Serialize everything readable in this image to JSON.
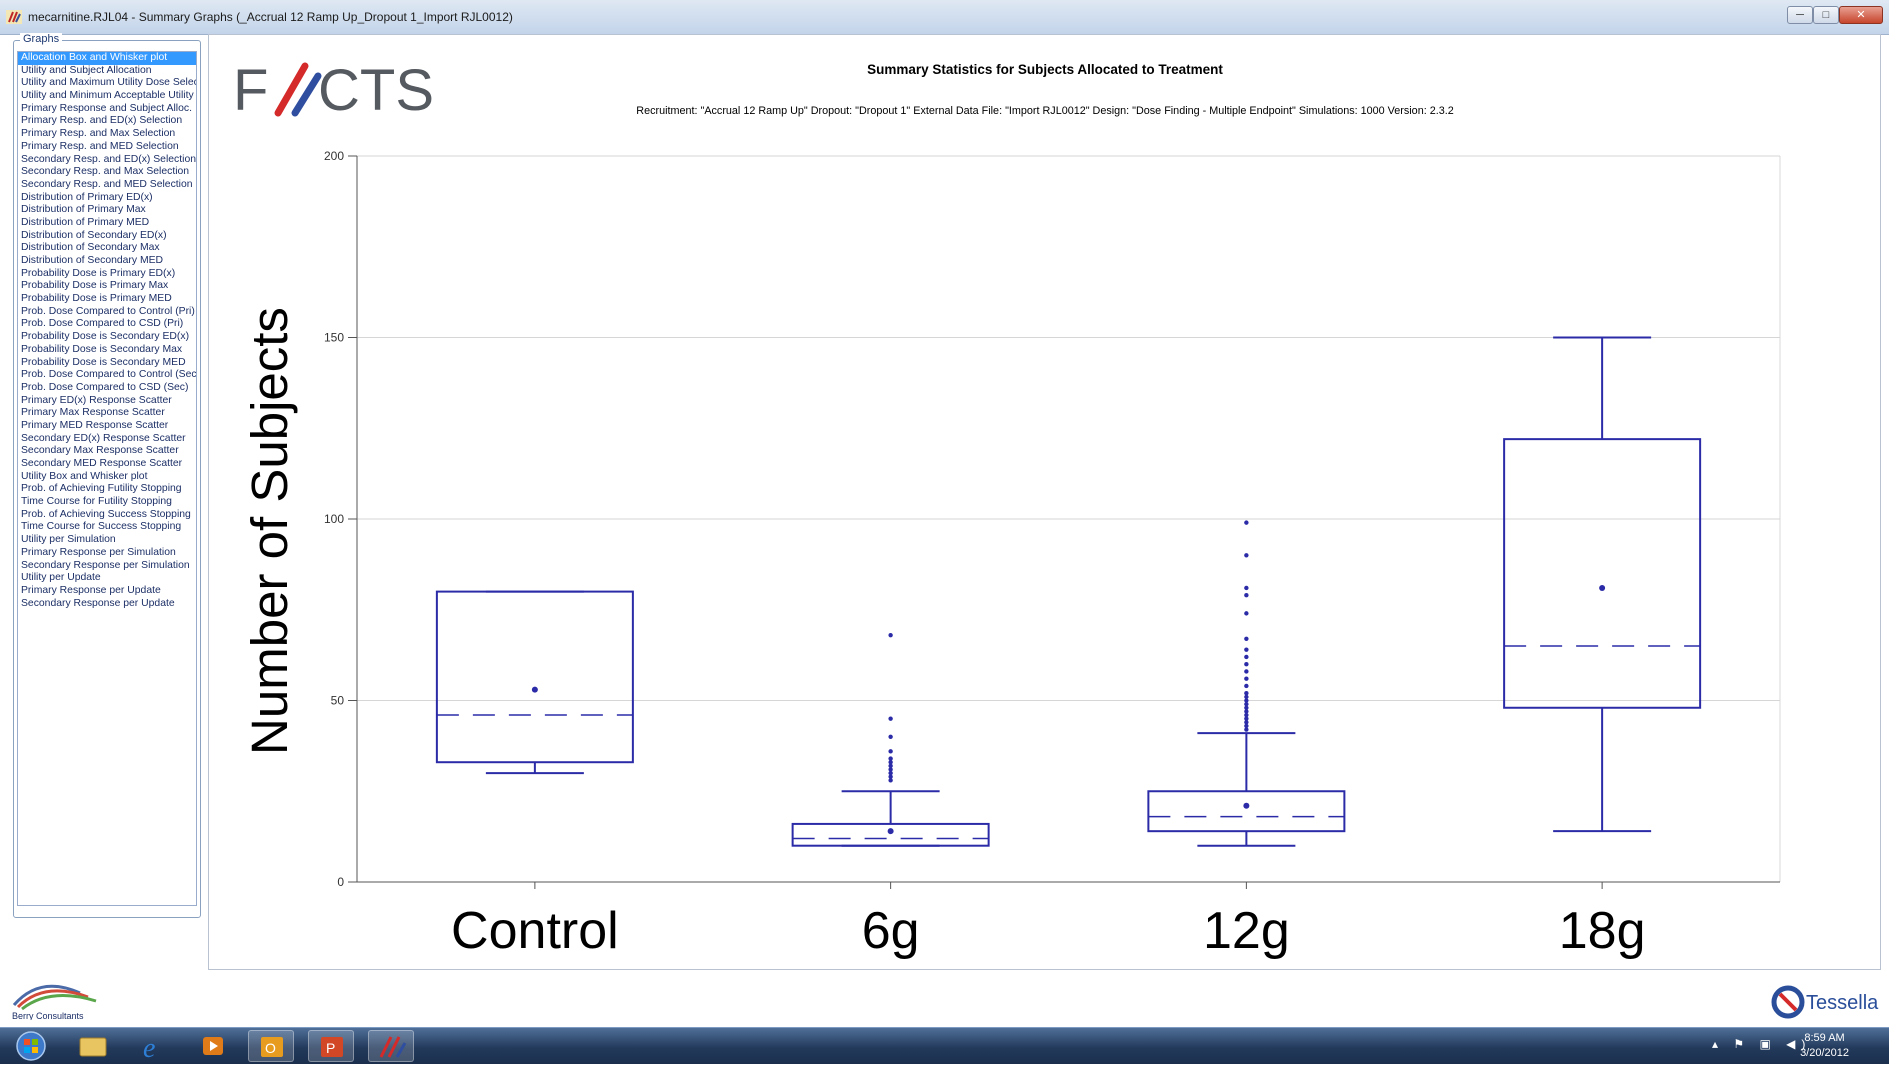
{
  "window": {
    "title": "mecarnitine.RJL04 - Summary Graphs (_Accrual 12 Ramp Up_Dropout 1_Import RJL0012)",
    "min_glyph": "─",
    "max_glyph": "□",
    "close_glyph": "✕"
  },
  "graphs_panel": {
    "legend": "Graphs",
    "items": [
      "Allocation Box and Whisker plot",
      "Utility and Subject Allocation",
      "Utility and Maximum Utility Dose Select",
      "Utility and Minimum Acceptable Utility [",
      "Primary Response and Subject Alloc.",
      "Primary Resp. and ED(x) Selection",
      "Primary Resp. and Max Selection",
      "Primary Resp. and MED Selection",
      "Secondary Resp. and ED(x) Selection",
      "Secondary Resp. and Max Selection",
      "Secondary Resp. and MED Selection",
      "Distribution of Primary ED(x)",
      "Distribution of Primary Max",
      "Distribution of Primary MED",
      "Distribution of Secondary ED(x)",
      "Distribution of Secondary Max",
      "Distribution of Secondary MED",
      "Probability Dose is Primary ED(x)",
      "Probability Dose is Primary Max",
      "Probability Dose is Primary MED",
      "Prob. Dose Compared to Control (Pri)",
      "Prob. Dose Compared to CSD (Pri)",
      "Probability Dose is Secondary ED(x)",
      "Probability Dose is Secondary Max",
      "Probability Dose is Secondary MED",
      "Prob. Dose Compared to Control (Sec)",
      "Prob. Dose Compared to CSD (Sec)",
      "Primary ED(x) Response Scatter",
      "Primary Max Response Scatter",
      "Primary MED Response Scatter",
      "Secondary ED(x) Response Scatter",
      "Secondary Max Response Scatter",
      "Secondary MED Response Scatter",
      "Utility Box and Whisker plot",
      "Prob. of Achieving Futility Stopping",
      "Time Course for Futility Stopping",
      "Prob. of Achieving Success Stopping",
      "Time Course for Success Stopping",
      "Utility per Simulation",
      "Primary Response per Simulation",
      "Secondary Response per Simulation",
      "Utility per Update",
      "Primary Response per Update",
      "Secondary Response per Update"
    ],
    "selected_index": 0
  },
  "logos": {
    "facts": "FACTS",
    "berry": "Berry Consultants",
    "tessella": "Tessella"
  },
  "chart_header": {
    "title": "Summary Statistics for Subjects Allocated to Treatment",
    "subtitle": "Recruitment: \"Accrual 12 Ramp Up\" Dropout: \"Dropout 1\" External Data File: \"Import RJL0012\" Design: \"Dose Finding - Multiple Endpoint\" Simulations: 1000 Version: 2.3.2"
  },
  "chart_data": {
    "type": "boxplot",
    "ylabel": "Number of Subjects",
    "xlabel": "",
    "ylim": [
      0,
      200
    ],
    "yticks": [
      0,
      50,
      100,
      150,
      200
    ],
    "grid": true,
    "color": "#2b2ba8",
    "categories": [
      "Control",
      "6g",
      "12g",
      "18g"
    ],
    "boxes": [
      {
        "category": "Control",
        "whisker_low": 30,
        "q1": 33,
        "median": 46,
        "q3": 80,
        "whisker_high": 80,
        "mean": 53,
        "outliers": []
      },
      {
        "category": "6g",
        "whisker_low": 10,
        "q1": 10,
        "median": 12,
        "q3": 16,
        "whisker_high": 25,
        "mean": 14,
        "outliers": [
          28,
          29,
          30,
          31,
          32,
          33,
          34,
          36,
          40,
          45,
          68
        ]
      },
      {
        "category": "12g",
        "whisker_low": 10,
        "q1": 14,
        "median": 18,
        "q3": 25,
        "whisker_high": 41,
        "mean": 21,
        "outliers": [
          42,
          43,
          44,
          45,
          46,
          47,
          48,
          49,
          50,
          51,
          52,
          54,
          56,
          58,
          60,
          62,
          64,
          67,
          74,
          79,
          81,
          90,
          99
        ]
      },
      {
        "category": "18g",
        "whisker_low": 14,
        "q1": 48,
        "median": 65,
        "q3": 122,
        "whisker_high": 150,
        "mean": 81,
        "outliers": []
      }
    ]
  },
  "taskbar": {
    "time": "8:59 AM",
    "date": "3/20/2012",
    "tray": "▴ ⚑ ▣ ◀)"
  }
}
